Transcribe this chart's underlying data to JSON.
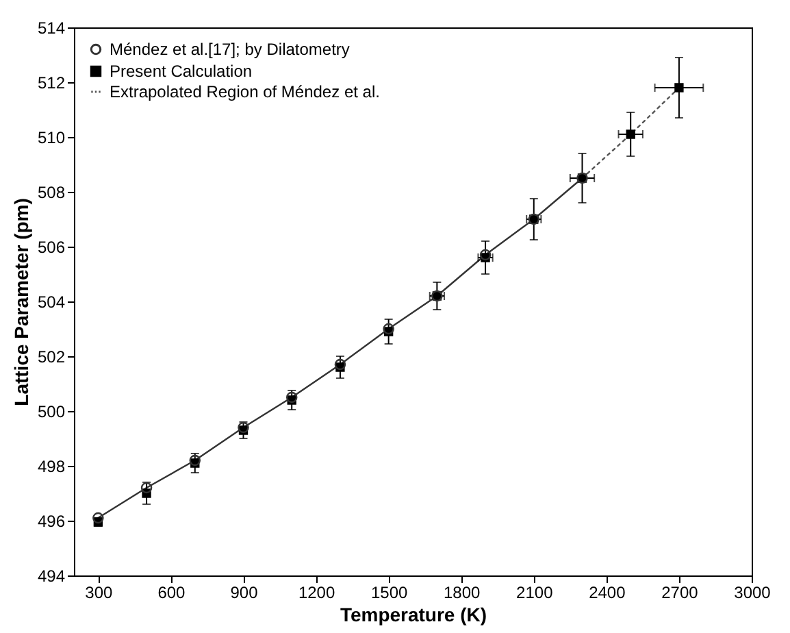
{
  "chart_data": {
    "type": "line",
    "xlabel": "Temperature (K)",
    "ylabel": "Lattice Parameter (pm)",
    "xlim": [
      200,
      3000
    ],
    "ylim": [
      494,
      514
    ],
    "xticks": [
      300,
      600,
      900,
      1200,
      1500,
      1800,
      2100,
      2400,
      2700,
      3000
    ],
    "yticks": [
      494,
      496,
      498,
      500,
      502,
      504,
      506,
      508,
      510,
      512,
      514
    ],
    "grid": false,
    "legend": "top left",
    "series": [
      {
        "name": "Méndez et al.[17]; by  Dilatometry",
        "marker": "circle",
        "line_style": "solid",
        "color": "#333333",
        "x": [
          300,
          500,
          700,
          900,
          1100,
          1300,
          1500,
          1700,
          1900,
          2100,
          2300
        ],
        "values": [
          496.1,
          497.2,
          498.2,
          499.4,
          500.5,
          501.7,
          503.0,
          504.2,
          505.7,
          507.0,
          508.5
        ]
      },
      {
        "name": "Present Calculation",
        "type": "scatter",
        "marker": "square",
        "color": "#000000",
        "x": [
          300,
          500,
          700,
          900,
          1100,
          1300,
          1500,
          1700,
          1900,
          2100,
          2300,
          2500,
          2700
        ],
        "values": [
          495.95,
          497.0,
          498.1,
          499.3,
          500.4,
          501.6,
          502.9,
          504.2,
          505.6,
          507.0,
          508.5,
          510.1,
          511.8
        ],
        "errors": [
          0.15,
          0.4,
          0.35,
          0.3,
          0.35,
          0.4,
          0.45,
          0.5,
          0.6,
          0.75,
          0.9,
          0.8,
          1.1
        ],
        "xerrors": [
          null,
          null,
          null,
          null,
          null,
          null,
          null,
          30,
          30,
          30,
          50,
          50,
          100
        ]
      },
      {
        "name": "Extrapolated Region of  Méndez et al.",
        "marker": "none",
        "line_style": "dotted",
        "color": "#555555",
        "x": [
          2300,
          2500,
          2700
        ],
        "values": [
          508.5,
          510.1,
          511.8
        ]
      }
    ]
  }
}
